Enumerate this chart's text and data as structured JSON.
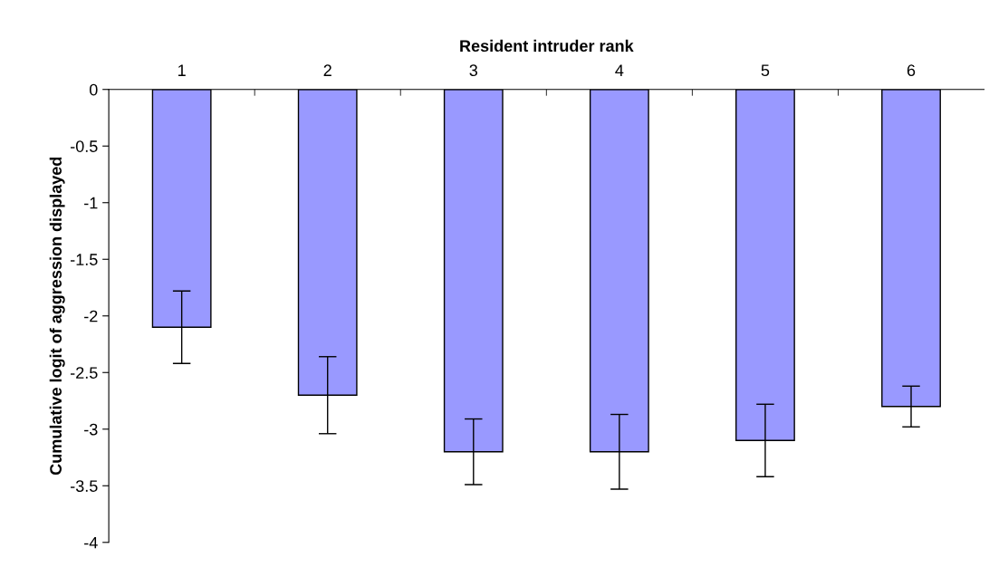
{
  "chart_data": {
    "type": "bar",
    "xlabel": "Resident intruder rank",
    "ylabel": "Cumulative logit of aggression displayed",
    "categories": [
      "1",
      "2",
      "3",
      "4",
      "5",
      "6"
    ],
    "values": [
      -2.1,
      -2.7,
      -3.2,
      -3.2,
      -3.1,
      -2.8
    ],
    "errors": [
      0.32,
      0.34,
      0.29,
      0.33,
      0.32,
      0.18
    ],
    "color": "#9999ff",
    "ylim": [
      -4,
      0
    ],
    "yticks": [
      0,
      -0.5,
      -1,
      -1.5,
      -2,
      -2.5,
      -3,
      -3.5,
      -4
    ],
    "grid": false,
    "legend": false
  }
}
